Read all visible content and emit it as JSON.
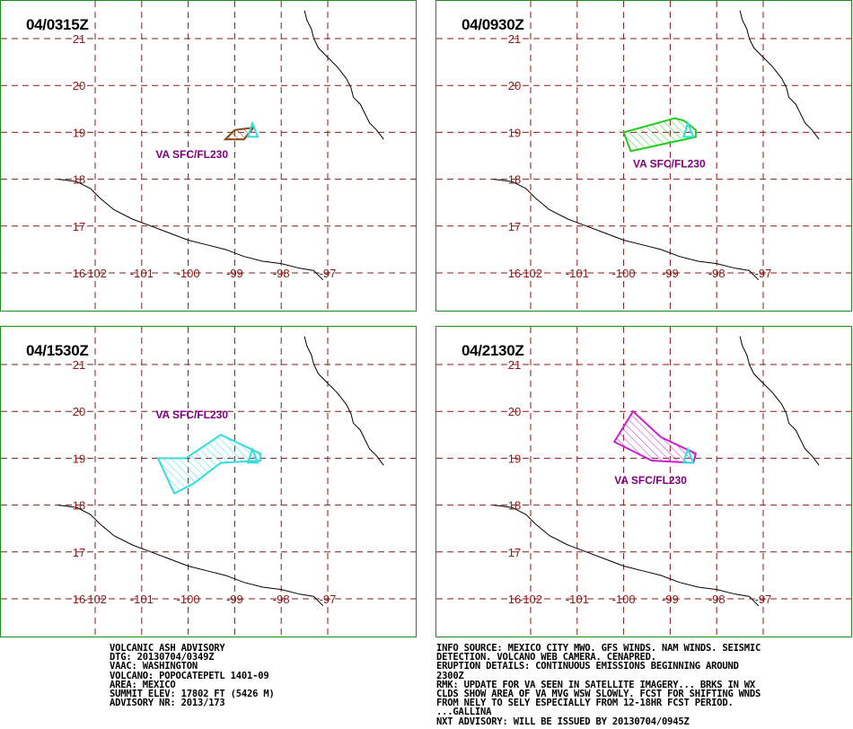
{
  "panels": [
    {
      "title": "04/0315Z",
      "label": "VA SFC/FL230",
      "color": "#8b4513",
      "polygon": [
        [
          -98.6,
          19.1
        ],
        [
          -99.0,
          19.05
        ],
        [
          -99.2,
          18.85
        ],
        [
          -98.8,
          18.85
        ]
      ],
      "label_pos": [
        -100.7,
        18.45
      ]
    },
    {
      "title": "04/0930Z",
      "label": "VA SFC/FL230",
      "color": "#22cc22",
      "polygon": [
        [
          -98.45,
          19.05
        ],
        [
          -98.7,
          19.25
        ],
        [
          -98.9,
          19.3
        ],
        [
          -100.0,
          19.0
        ],
        [
          -99.85,
          18.6
        ],
        [
          -98.45,
          18.9
        ]
      ],
      "label_pos": [
        -99.8,
        18.25
      ]
    },
    {
      "title": "04/1530Z",
      "label": "VA SFC/FL230",
      "color": "#33dddd",
      "polygon": [
        [
          -98.45,
          19.1
        ],
        [
          -99.3,
          19.5
        ],
        [
          -100.05,
          19.0
        ],
        [
          -100.65,
          19.0
        ],
        [
          -100.3,
          18.25
        ],
        [
          -99.9,
          18.45
        ],
        [
          -99.3,
          18.9
        ],
        [
          -98.45,
          18.95
        ]
      ],
      "label_pos": [
        -100.7,
        19.85
      ]
    },
    {
      "title": "04/2130Z",
      "label": "VA SFC/FL230",
      "color": "#cc22cc",
      "polygon": [
        [
          -98.45,
          19.1
        ],
        [
          -99.2,
          19.45
        ],
        [
          -99.8,
          20.0
        ],
        [
          -100.2,
          19.35
        ],
        [
          -99.4,
          18.95
        ],
        [
          -98.5,
          18.9
        ]
      ],
      "label_pos": [
        -100.2,
        18.45
      ]
    }
  ],
  "axes": {
    "lat_labels": [
      "21",
      "20",
      "19",
      "18",
      "17",
      "16"
    ],
    "lon_labels": [
      "-102",
      "-101",
      "-100",
      "-99",
      "-98",
      "-97"
    ]
  },
  "volcano": {
    "name_marker": "triangle",
    "lon": -98.62,
    "lat": 19.02,
    "color": "#33dddd"
  },
  "advisory_left": [
    "VOLCANIC ASH ADVISORY",
    "DTG: 20130704/0349Z",
    "VAAC: WASHINGTON",
    "VOLCANO: POPOCATEPETL 1401-09",
    "AREA: MEXICO",
    "SUMMIT ELEV: 17802 FT (5426 M)",
    "ADVISORY NR: 2013/173"
  ],
  "advisory_right": [
    "INFO SOURCE: MEXICO CITY MWO. GFS WINDS. NAM WINDS. SEISMIC",
    "DETECTION. VOLCANO WEB CAMERA. CENAPRED.",
    "ERUPTION DETAILS: CONTINUOUS EMISSIONS BEGINNING AROUND",
    "2300Z",
    "RMK: UPDATE FOR VA SEEN IN SATELLITE IMAGERY... BRKS IN WX",
    "CLDS SHOW AREA OF VA MVG WSW SLOWLY. FCST FOR SHIFTING WNDS",
    "FROM NELY TO SELY ESPECIALLY FROM 12-18HR FCST PERIOD.",
    "...GALLINA",
    "NXT ADVISORY: WILL BE ISSUED BY 20130704/0945Z"
  ]
}
